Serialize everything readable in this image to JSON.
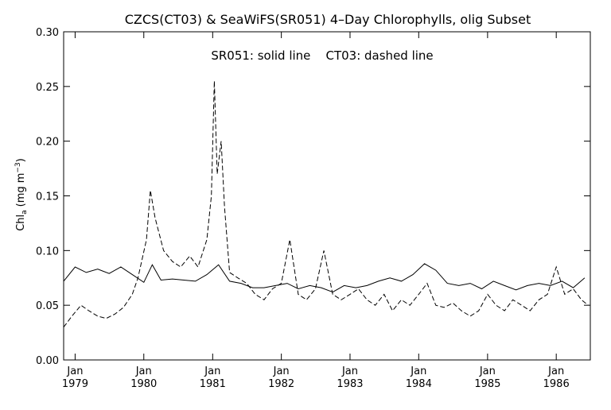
{
  "chart_data": {
    "type": "line",
    "title": "CZCS(CT03) & SeaWiFS(SR051) 4–Day Chlorophylls, olig Subset",
    "annotation": "SR051: solid line    CT03: dashed line",
    "ylabel_main": "Chl",
    "ylabel_sub": "a",
    "ylabel_unit": "(mg m",
    "ylabel_sup": "−3",
    "ylabel_close": ")",
    "ylim": [
      0.0,
      0.3
    ],
    "yticks": [
      "0.00",
      "0.05",
      "0.10",
      "0.15",
      "0.20",
      "0.25",
      "0.30"
    ],
    "xlim": [
      "1978-11-01",
      "1986-07-01"
    ],
    "xticks": [
      {
        "month": "Jan",
        "year": "1979",
        "date": "1979-01-01"
      },
      {
        "month": "Jan",
        "year": "1980",
        "date": "1980-01-01"
      },
      {
        "month": "Jan",
        "year": "1981",
        "date": "1981-01-01"
      },
      {
        "month": "Jan",
        "year": "1982",
        "date": "1982-01-01"
      },
      {
        "month": "Jan",
        "year": "1983",
        "date": "1983-01-01"
      },
      {
        "month": "Jan",
        "year": "1984",
        "date": "1984-01-01"
      },
      {
        "month": "Jan",
        "year": "1985",
        "date": "1985-01-01"
      },
      {
        "month": "Jan",
        "year": "1986",
        "date": "1986-01-01"
      }
    ],
    "grid": false,
    "series": [
      {
        "name": "SR051",
        "style": "solid",
        "color": "#000000",
        "x": [
          "1978-11-01",
          "1979-01-01",
          "1979-03-01",
          "1979-05-01",
          "1979-07-01",
          "1979-09-01",
          "1979-11-01",
          "1980-01-01",
          "1980-02-15",
          "1980-04-01",
          "1980-06-01",
          "1980-08-01",
          "1980-10-01",
          "1980-12-01",
          "1981-02-01",
          "1981-04-01",
          "1981-06-01",
          "1981-08-01",
          "1981-10-01",
          "1981-12-01",
          "1982-02-01",
          "1982-04-01",
          "1982-06-01",
          "1982-08-01",
          "1982-10-01",
          "1982-12-01",
          "1983-02-01",
          "1983-04-01",
          "1983-06-01",
          "1983-08-01",
          "1983-10-01",
          "1983-12-01",
          "1984-02-01",
          "1984-04-01",
          "1984-06-01",
          "1984-08-01",
          "1984-10-01",
          "1984-12-01",
          "1985-02-01",
          "1985-04-01",
          "1985-06-01",
          "1985-08-01",
          "1985-10-01",
          "1985-12-01",
          "1986-02-01",
          "1986-04-01",
          "1986-06-01"
        ],
        "values": [
          0.072,
          0.085,
          0.08,
          0.083,
          0.079,
          0.085,
          0.078,
          0.071,
          0.087,
          0.073,
          0.074,
          0.073,
          0.072,
          0.078,
          0.087,
          0.072,
          0.07,
          0.066,
          0.066,
          0.068,
          0.07,
          0.065,
          0.068,
          0.066,
          0.062,
          0.068,
          0.066,
          0.068,
          0.072,
          0.075,
          0.072,
          0.078,
          0.088,
          0.082,
          0.07,
          0.068,
          0.07,
          0.065,
          0.072,
          0.068,
          0.064,
          0.068,
          0.07,
          0.068,
          0.072,
          0.066,
          0.075
        ]
      },
      {
        "name": "CT03",
        "style": "dashed",
        "color": "#000000",
        "x": [
          "1978-11-01",
          "1978-12-15",
          "1979-02-01",
          "1979-03-15",
          "1979-05-01",
          "1979-06-15",
          "1979-08-01",
          "1979-09-15",
          "1979-11-01",
          "1979-12-01",
          "1980-01-15",
          "1980-02-05",
          "1980-03-01",
          "1980-04-15",
          "1980-06-01",
          "1980-07-15",
          "1980-09-01",
          "1980-10-15",
          "1980-12-01",
          "1980-12-25",
          "1981-01-10",
          "1981-01-25",
          "1981-02-15",
          "1981-03-05",
          "1981-04-01",
          "1981-05-15",
          "1981-07-01",
          "1981-08-15",
          "1981-10-01",
          "1981-11-15",
          "1982-01-01",
          "1982-02-15",
          "1982-04-01",
          "1982-05-15",
          "1982-07-01",
          "1982-08-15",
          "1982-10-01",
          "1982-11-15",
          "1983-01-01",
          "1983-02-15",
          "1983-04-01",
          "1983-05-15",
          "1983-07-01",
          "1983-08-15",
          "1983-10-01",
          "1983-11-15",
          "1984-01-01",
          "1984-02-15",
          "1984-04-01",
          "1984-05-15",
          "1984-07-01",
          "1984-08-15",
          "1984-10-01",
          "1984-11-15",
          "1985-01-01",
          "1985-02-15",
          "1985-04-01",
          "1985-05-15",
          "1985-07-01",
          "1985-08-15",
          "1985-10-01",
          "1985-11-15",
          "1986-01-01",
          "1986-02-15",
          "1986-04-01",
          "1986-05-15",
          "1986-06-20"
        ],
        "values": [
          0.03,
          0.04,
          0.05,
          0.045,
          0.04,
          0.038,
          0.042,
          0.048,
          0.06,
          0.075,
          0.11,
          0.155,
          0.13,
          0.1,
          0.09,
          0.085,
          0.095,
          0.085,
          0.11,
          0.15,
          0.255,
          0.17,
          0.2,
          0.14,
          0.08,
          0.075,
          0.07,
          0.06,
          0.055,
          0.065,
          0.07,
          0.11,
          0.06,
          0.055,
          0.065,
          0.1,
          0.06,
          0.055,
          0.06,
          0.065,
          0.055,
          0.05,
          0.06,
          0.045,
          0.055,
          0.05,
          0.06,
          0.07,
          0.05,
          0.048,
          0.052,
          0.045,
          0.04,
          0.045,
          0.06,
          0.05,
          0.045,
          0.055,
          0.05,
          0.045,
          0.055,
          0.06,
          0.085,
          0.06,
          0.065,
          0.055,
          0.05
        ]
      }
    ]
  }
}
